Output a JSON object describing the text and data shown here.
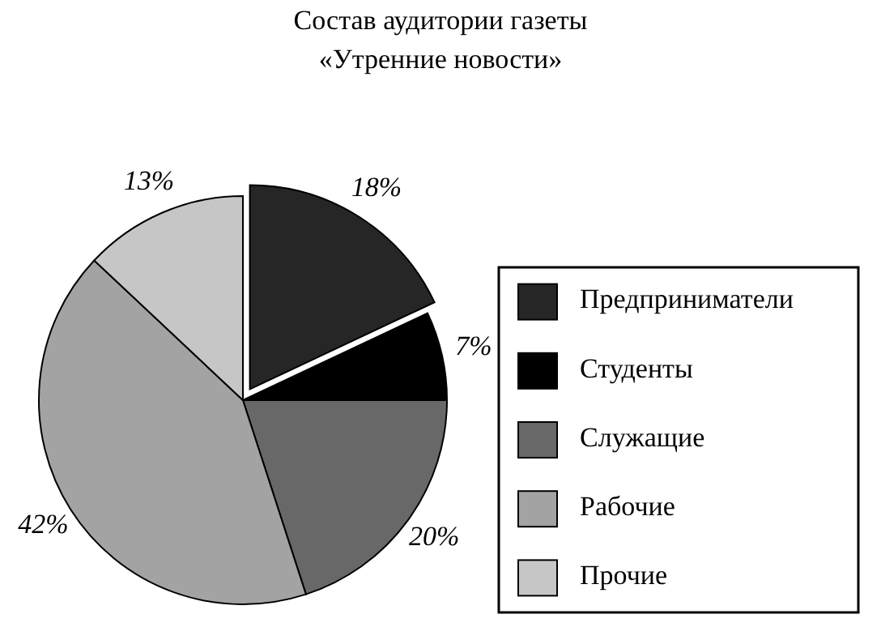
{
  "chart_data": {
    "type": "pie",
    "title": "Состав аудитории газеты\n«Утренние новости»",
    "categories": [
      "Предприниматели",
      "Студенты",
      "Служащие",
      "Рабочие",
      "Прочие"
    ],
    "values": [
      18,
      7,
      20,
      42,
      13
    ],
    "colors": [
      "#262626",
      "#000000",
      "#686868",
      "#a3a3a3",
      "#c6c6c6"
    ],
    "value_labels": [
      "18%",
      "7%",
      "20%",
      "42%",
      "13%"
    ],
    "legend": "right"
  }
}
